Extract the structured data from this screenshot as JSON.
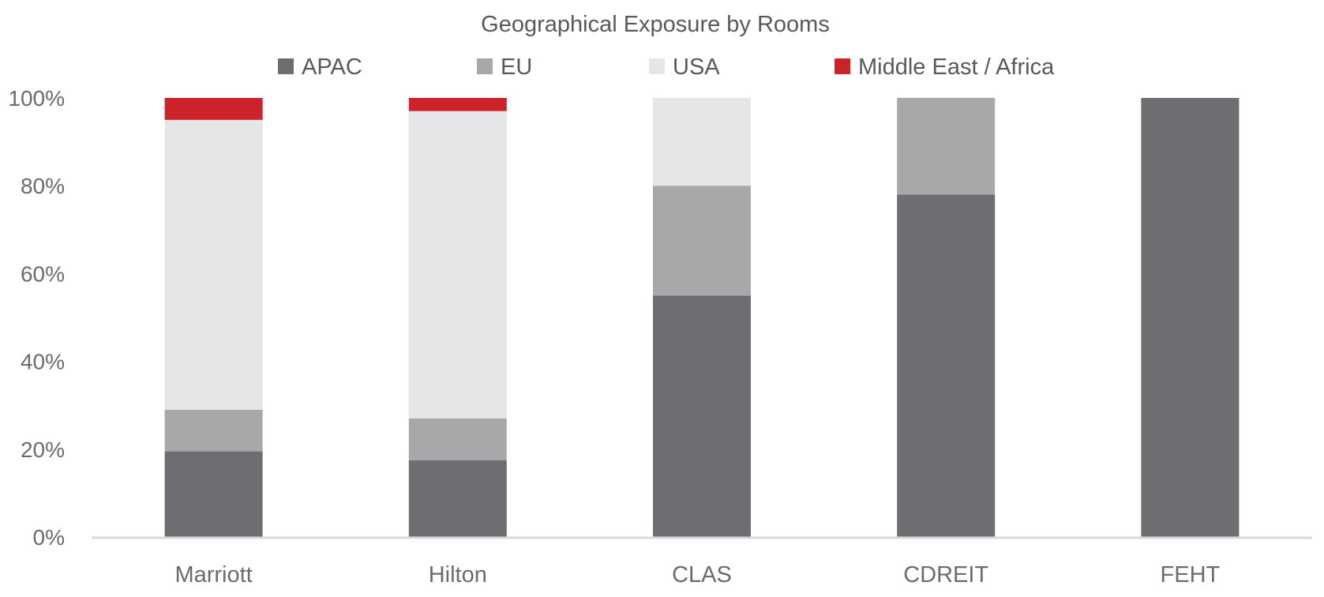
{
  "chart_data": {
    "type": "bar",
    "stacked": true,
    "title": "Geographical Exposure by Rooms",
    "xlabel": "",
    "ylabel": "",
    "categories": [
      "Marriott",
      "Hilton",
      "CLAS",
      "CDREIT",
      "FEHT"
    ],
    "series": [
      {
        "name": "APAC",
        "color": "#6d6e71",
        "values": [
          19.5,
          17.5,
          55,
          78,
          100
        ]
      },
      {
        "name": "EU",
        "color": "#a7a8aa",
        "values": [
          9.5,
          9.5,
          25,
          22,
          0
        ]
      },
      {
        "name": "USA",
        "color": "#e6e6e8",
        "values": [
          66,
          70,
          20,
          0,
          0
        ]
      },
      {
        "name": "Middle East / Africa",
        "color": "#cc2229",
        "values": [
          5,
          3,
          0,
          0,
          0
        ]
      }
    ],
    "ylim": [
      0,
      100
    ],
    "yticks": [
      0,
      20,
      40,
      60,
      80,
      100
    ],
    "ytick_labels": [
      "0%",
      "20%",
      "40%",
      "60%",
      "80%",
      "100%"
    ],
    "legend_position": "top",
    "grid": false,
    "axis_color": "#d9d9d9"
  }
}
